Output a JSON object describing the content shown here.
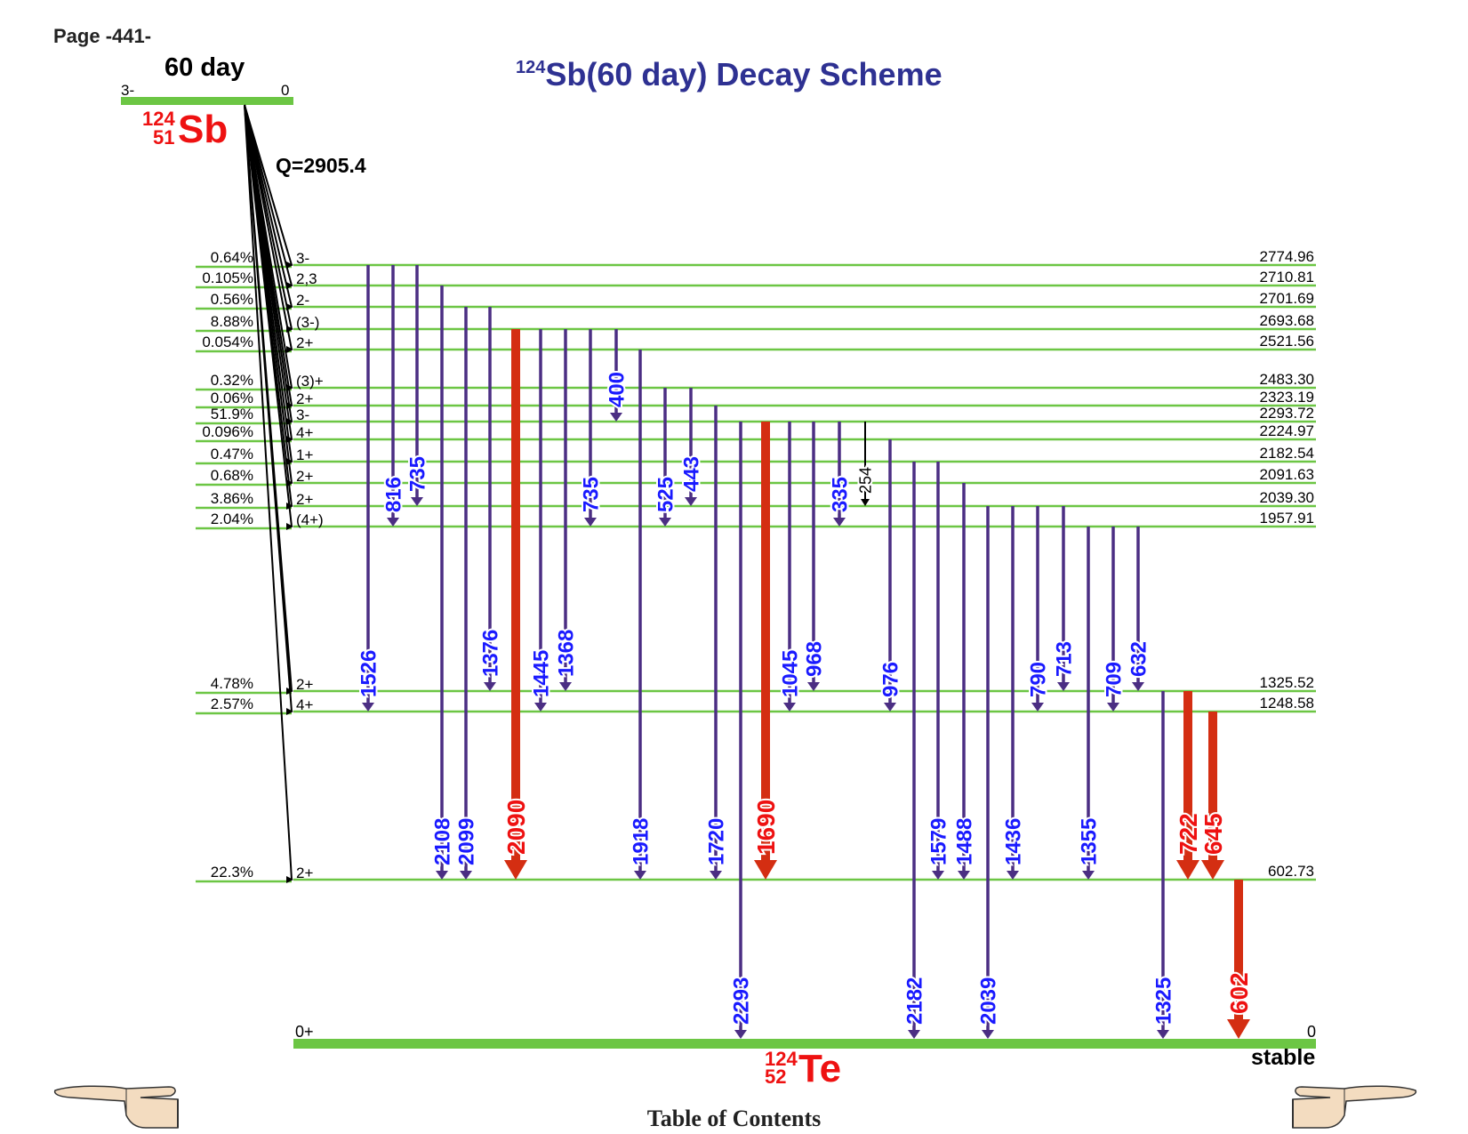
{
  "page": {
    "label": "Page -441-"
  },
  "title": {
    "prefix_sup": "124",
    "text": "Sb(60 day) Decay Scheme",
    "color": "#2e3192"
  },
  "parent": {
    "halflife": "60 day",
    "spin": "3-",
    "energy": "0",
    "mass": "124",
    "z": "51",
    "symbol": "Sb",
    "q_value": "Q=2905.4"
  },
  "daughter": {
    "spin": "0+",
    "energy": "0",
    "stability": "stable",
    "mass": "124",
    "z": "52",
    "symbol": "Te"
  },
  "colors": {
    "level_line": "#6cc644",
    "gamma": "#4b2e83",
    "gamma_strong": "#d42e12",
    "label_blue": "#1a1aff",
    "label_red": "#ee1111",
    "label_black": "#000000",
    "nuclide_red": "#ee1111"
  },
  "levels": [
    {
      "energy": "2774.96",
      "spin": "3-",
      "branch": "0.64%"
    },
    {
      "energy": "2710.81",
      "spin": "2,3",
      "branch": "0.105%"
    },
    {
      "energy": "2701.69",
      "spin": "2-",
      "branch": "0.56%"
    },
    {
      "energy": "2693.68",
      "spin": "(3-)",
      "branch": "8.88%"
    },
    {
      "energy": "2521.56",
      "spin": "2+",
      "branch": "0.054%"
    },
    {
      "energy": "2483.30",
      "spin": "(3)+",
      "branch": "0.32%"
    },
    {
      "energy": "2323.19",
      "spin": "2+",
      "branch": "0.06%"
    },
    {
      "energy": "2293.72",
      "spin": "3-",
      "branch": "51.9%"
    },
    {
      "energy": "2224.97",
      "spin": "4+",
      "branch": "0.096%"
    },
    {
      "energy": "2182.54",
      "spin": "1+",
      "branch": "0.47%"
    },
    {
      "energy": "2091.63",
      "spin": "2+",
      "branch": "0.68%"
    },
    {
      "energy": "2039.30",
      "spin": "2+",
      "branch": "3.86%"
    },
    {
      "energy": "1957.91",
      "spin": "(4+)",
      "branch": "2.04%"
    },
    {
      "energy": "1325.52",
      "spin": "2+",
      "branch": "4.78%"
    },
    {
      "energy": "1248.58",
      "spin": "4+",
      "branch": "2.57%"
    },
    {
      "energy": "602.73",
      "spin": "2+",
      "branch": "22.3%"
    }
  ],
  "gammas": [
    {
      "label": "1526",
      "from": "2774.96",
      "to": "1248.58",
      "style": "normal"
    },
    {
      "label": "816",
      "from": "2774.96",
      "to": "1957.91",
      "style": "normal"
    },
    {
      "label": "735",
      "from": "2774.96",
      "to": "2039.30",
      "style": "normal"
    },
    {
      "label": "2108",
      "from": "2710.81",
      "to": "602.73",
      "style": "normal"
    },
    {
      "label": "2099",
      "from": "2701.69",
      "to": "602.73",
      "style": "normal"
    },
    {
      "label": "1376",
      "from": "2701.69",
      "to": "1325.52",
      "style": "normal"
    },
    {
      "label": "2090",
      "from": "2693.68",
      "to": "602.73",
      "style": "strong"
    },
    {
      "label": "1445",
      "from": "2693.68",
      "to": "1248.58",
      "style": "normal"
    },
    {
      "label": "1368",
      "from": "2693.68",
      "to": "1325.52",
      "style": "normal"
    },
    {
      "label": "735",
      "from": "2693.68",
      "to": "1957.91",
      "style": "normal"
    },
    {
      "label": "400",
      "from": "2693.68",
      "to": "2293.72",
      "style": "normal"
    },
    {
      "label": "1918",
      "from": "2521.56",
      "to": "602.73",
      "style": "normal"
    },
    {
      "label": "525",
      "from": "2483.30",
      "to": "1957.91",
      "style": "normal"
    },
    {
      "label": "443",
      "from": "2483.30",
      "to": "2039.30",
      "style": "normal"
    },
    {
      "label": "1720",
      "from": "2323.19",
      "to": "602.73",
      "style": "normal"
    },
    {
      "label": "2293",
      "from": "2293.72",
      "to": "0",
      "style": "normal"
    },
    {
      "label": "1690",
      "from": "2293.72",
      "to": "602.73",
      "style": "strong"
    },
    {
      "label": "1045",
      "from": "2293.72",
      "to": "1248.58",
      "style": "normal"
    },
    {
      "label": "968",
      "from": "2293.72",
      "to": "1325.52",
      "style": "normal"
    },
    {
      "label": "335",
      "from": "2293.72",
      "to": "1957.91",
      "style": "normal"
    },
    {
      "label": "254",
      "from": "2293.72",
      "to": "2039.30",
      "style": "thin"
    },
    {
      "label": "976",
      "from": "2224.97",
      "to": "1248.58",
      "style": "normal"
    },
    {
      "label": "2182",
      "from": "2182.54",
      "to": "0",
      "style": "normal"
    },
    {
      "label": "1579",
      "from": "2182.54",
      "to": "602.73",
      "style": "normal"
    },
    {
      "label": "1488",
      "from": "2091.63",
      "to": "602.73",
      "style": "normal"
    },
    {
      "label": "2039",
      "from": "2039.30",
      "to": "0",
      "style": "normal"
    },
    {
      "label": "1436",
      "from": "2039.30",
      "to": "602.73",
      "style": "normal"
    },
    {
      "label": "790",
      "from": "2039.30",
      "to": "1248.58",
      "style": "normal"
    },
    {
      "label": "713",
      "from": "2039.30",
      "to": "1325.52",
      "style": "normal"
    },
    {
      "label": "1355",
      "from": "1957.91",
      "to": "602.73",
      "style": "normal"
    },
    {
      "label": "709",
      "from": "1957.91",
      "to": "1248.58",
      "style": "normal"
    },
    {
      "label": "632",
      "from": "1957.91",
      "to": "1325.52",
      "style": "normal"
    },
    {
      "label": "1325",
      "from": "1325.52",
      "to": "0",
      "style": "normal"
    },
    {
      "label": "722",
      "from": "1325.52",
      "to": "602.73",
      "style": "strong"
    },
    {
      "label": "645",
      "from": "1248.58",
      "to": "602.73",
      "style": "strong"
    },
    {
      "label": "602",
      "from": "602.73",
      "to": "0",
      "style": "strong"
    }
  ],
  "navigation": {
    "prev_icon": "pointing-hand-left-icon",
    "next_icon": "pointing-hand-right-icon",
    "toc_label": "Table of Contents"
  }
}
